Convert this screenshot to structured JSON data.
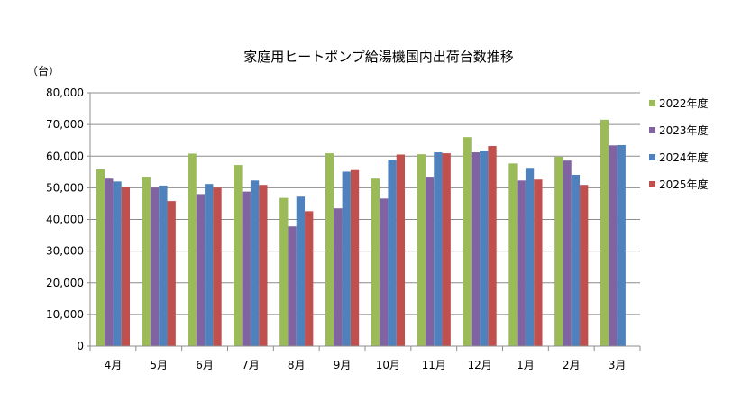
{
  "chart_data": {
    "type": "bar",
    "title": "家庭用ヒートポンプ給湯機国内出荷台数推移",
    "ylabel": "（台）",
    "xlabel": "",
    "ylim": [
      0,
      80000
    ],
    "yticks": [
      0,
      10000,
      20000,
      30000,
      40000,
      50000,
      60000,
      70000,
      80000
    ],
    "ytick_labels": [
      "0",
      "10,000",
      "20,000",
      "30,000",
      "40,000",
      "50,000",
      "60,000",
      "70,000",
      "80,000"
    ],
    "grid": "horizontal",
    "legend_position": "right",
    "categories": [
      "4月",
      "5月",
      "6月",
      "7月",
      "8月",
      "9月",
      "10月",
      "11月",
      "12月",
      "1月",
      "2月",
      "3月"
    ],
    "series": [
      {
        "name": "2022年度",
        "color": "#9bbb59",
        "values": [
          55800,
          53500,
          60800,
          57200,
          46800,
          60900,
          52900,
          60600,
          66000,
          57700,
          59800,
          71500
        ]
      },
      {
        "name": "2023年度",
        "color": "#8064a2",
        "values": [
          52900,
          50000,
          48000,
          48800,
          37800,
          43500,
          46600,
          53500,
          61200,
          52300,
          58600,
          63400
        ]
      },
      {
        "name": "2024年度",
        "color": "#4f81bd",
        "values": [
          52000,
          50700,
          51200,
          52300,
          47200,
          55100,
          58900,
          61200,
          61700,
          56300,
          54100,
          63500
        ]
      },
      {
        "name": "2025年度",
        "color": "#c0504d",
        "values": [
          50300,
          45800,
          50000,
          50900,
          42600,
          55600,
          60500,
          60900,
          63200,
          52600,
          50900,
          null
        ]
      }
    ]
  }
}
